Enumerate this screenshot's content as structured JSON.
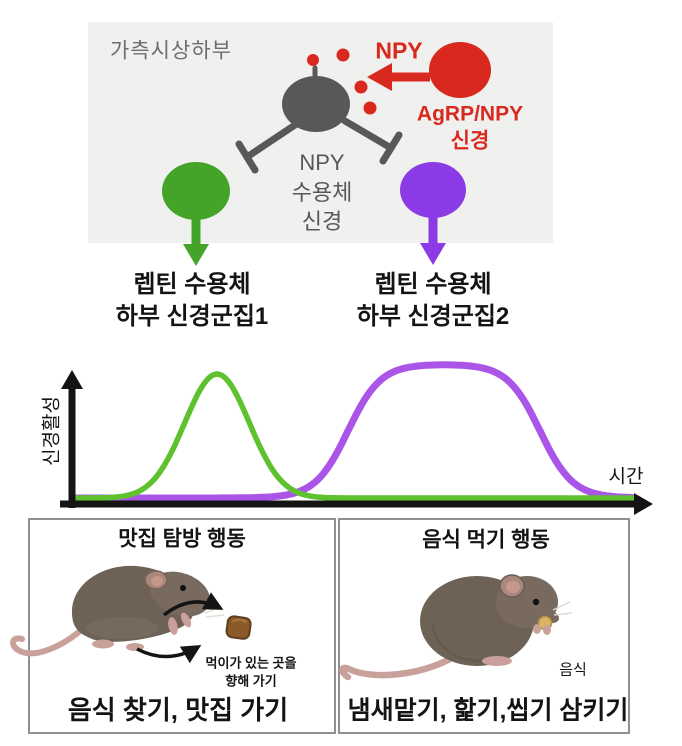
{
  "hypothalamus_panel": {
    "region_label": "가측시상하부",
    "npy_label": "NPY",
    "agrp_line1": "AgRP/NPY",
    "agrp_line2": "신경",
    "receptor_line1": "NPY",
    "receptor_line2": "수용체",
    "receptor_line3": "신경"
  },
  "clusters": [
    {
      "line1": "렙틴 수용체",
      "line2": "하부 신경군집1"
    },
    {
      "line1": "렙틴 수용체",
      "line2": "하부 신경군집2"
    }
  ],
  "chart": {
    "ylabel": "신경활성",
    "xlabel": "시간"
  },
  "chart_data": {
    "type": "line",
    "title": "",
    "xlabel": "시간",
    "ylabel": "신경활성",
    "x_range": [
      0,
      10
    ],
    "y_range": [
      0,
      1.2
    ],
    "grid": false,
    "legend_position": "none",
    "axes_arrows": true,
    "series": [
      {
        "name": "렙틴 수용체 하부 신경군집1 (맛집 탐방 행동)",
        "color": "#5ec22f",
        "stroke_width": 5.5,
        "model": {
          "type": "gaussian",
          "center": 2.55,
          "sigma": 0.58,
          "amplitude": 1.0
        },
        "description": "transient bell-shaped activity peak early in time"
      },
      {
        "name": "렙틴 수용체 하부 신경군집2 (음식 먹기 행동)",
        "color": "#aa55e8",
        "stroke_width": 7,
        "model": {
          "type": "plateau",
          "rise_center": 4.9,
          "fall_center": 8.35,
          "steepness": 3.4,
          "amplitude": 1.08
        },
        "description": "sustained plateau of activity later in time"
      }
    ]
  },
  "behavior_panels": [
    {
      "title": "맛집 탐방 행동",
      "note_line1": "먹이가 있는 곳을",
      "note_line2": "향해 가기",
      "caption": "음식 찾기, 맛집 가기"
    },
    {
      "title": "음식 먹기 행동",
      "food_label": "음식",
      "caption": "냄새맡기, 핥기,씹기 삼키기"
    }
  ],
  "colors": {
    "panel_bg": "#f0f0ee",
    "panel_label": "#6e6e6e",
    "red": "#d9291f",
    "gray_neuron": "#595757",
    "green_neuron": "#44a42a",
    "purple_neuron": "#8b3be6",
    "axis": "#141414",
    "box_border": "#909090",
    "text": "#141414",
    "mouse": "#6e6156",
    "mouse_head": "#786a5e",
    "ear": "#a9887c",
    "paw": "#c9a09a",
    "tail": "#c9a09a",
    "food_brown": "#8a5a28",
    "food_yellow": "#d9b36a"
  }
}
